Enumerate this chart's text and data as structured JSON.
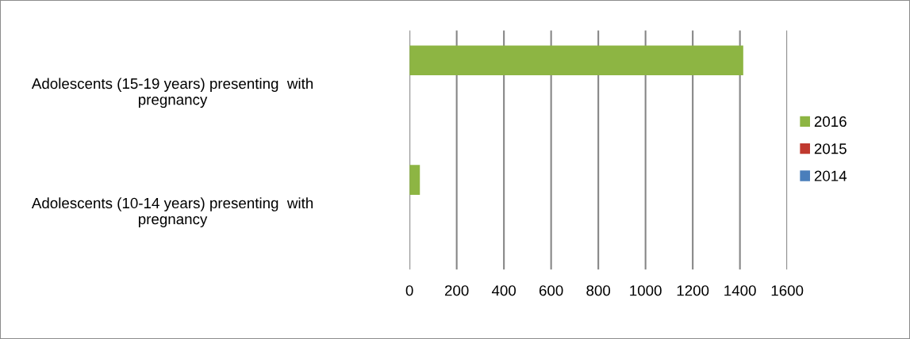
{
  "chart_data": {
    "type": "bar",
    "orientation": "horizontal",
    "categories": [
      "Adolescents (15-19 years) presenting  with pregnancy",
      "Adolescents (10-14 years) presenting  with pregnancy"
    ],
    "series": [
      {
        "name": "2016",
        "color": "#8db543",
        "values": [
          1414,
          44
        ]
      },
      {
        "name": "2015",
        "color": "#c0392f",
        "values": [
          0,
          0
        ]
      },
      {
        "name": "2014",
        "color": "#4a7ebb",
        "values": [
          0,
          0
        ]
      }
    ],
    "xlim": [
      0,
      1600
    ],
    "xticks": [
      0,
      200,
      400,
      600,
      800,
      1000,
      1200,
      1400,
      1600
    ],
    "grid": "x",
    "legend": "right"
  }
}
